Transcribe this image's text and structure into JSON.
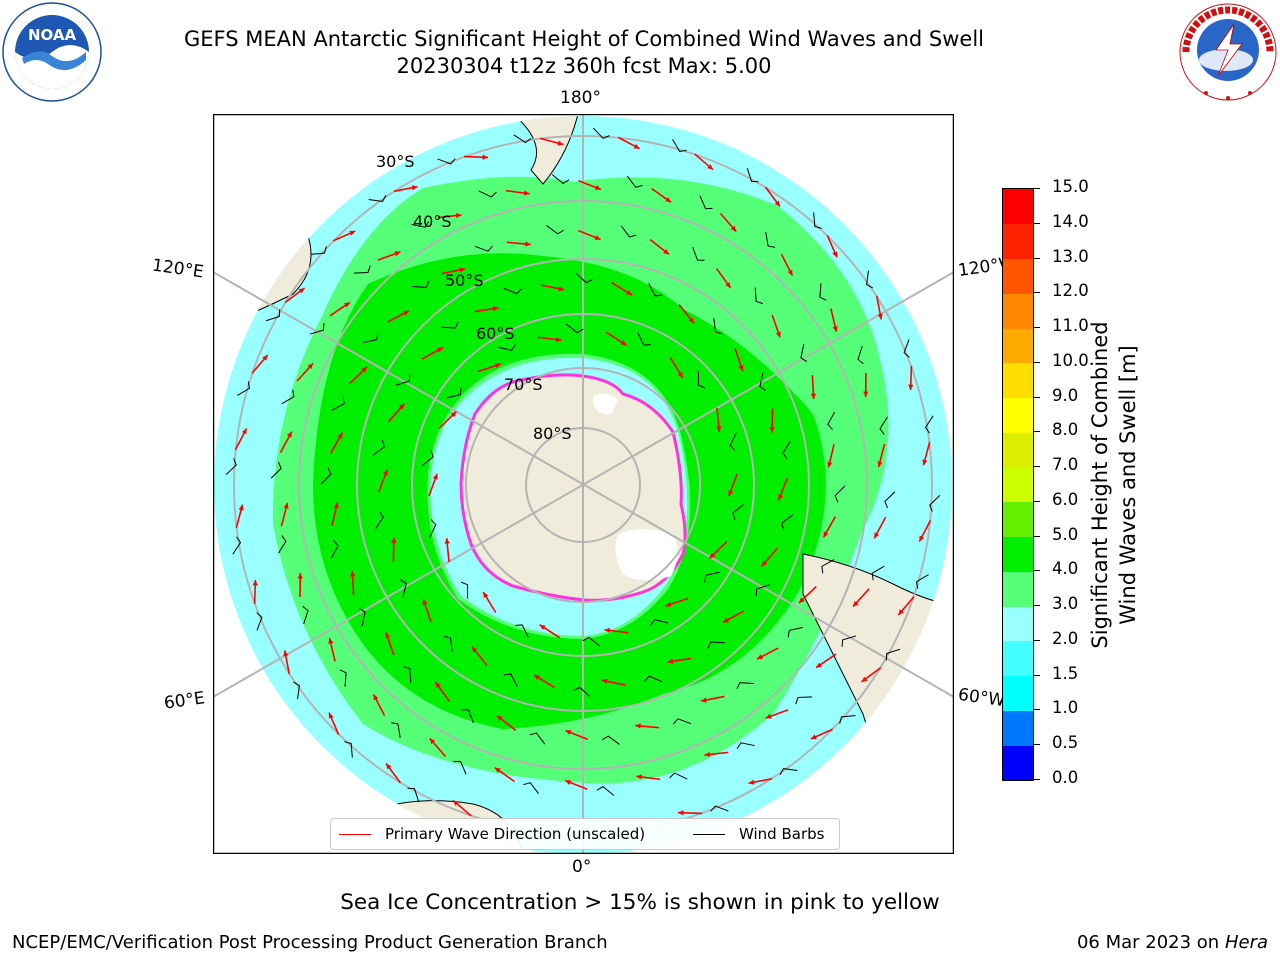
{
  "title": {
    "line1": "GEFS MEAN Antarctic Significant Height of Combined Wind Waves and Swell",
    "line2": "20230304 t12z 360h fcst   Max: 5.00"
  },
  "logos": {
    "noaa": {
      "icon": "noaa-logo",
      "text": "NOAA",
      "ring_text": "NATIONAL OCEANIC AND ATMOSPHERIC ADMINISTRATION · U.S. DEPARTMENT OF COMMERCE"
    },
    "nws": {
      "icon": "nws-logo",
      "ring_text": "NATIONAL WEATHER SERVICE"
    }
  },
  "map": {
    "projection": "south-polar-stereographic",
    "longitude_labels": {
      "top": "180°",
      "bottom": "0°",
      "left_upper": "120°E",
      "left_lower": "60°E",
      "right_upper": "120°W",
      "right_lower": "60°W"
    },
    "latitude_labels": [
      "30°S",
      "40°S",
      "50°S",
      "60°S",
      "70°S",
      "80°S"
    ],
    "colors": {
      "land": "#efecdc",
      "antarctic_ice_shelf": "#ffffff",
      "sea_ice_edge": "#ff33dd",
      "grid": "#b4b4b4",
      "wave_arrow": "#ff0000",
      "wind_barb": "#000000"
    }
  },
  "legend": {
    "wave_direction": "Primary Wave Direction (unscaled)",
    "wind_barbs": "Wind Barbs"
  },
  "colorbar": {
    "title_line1": "Significant Height of Combined",
    "title_line2": "Wind Waves and Swell [m]",
    "ticks": [
      "0.0",
      "0.5",
      "1.0",
      "1.5",
      "2.0",
      "3.0",
      "4.0",
      "5.0",
      "6.0",
      "7.0",
      "8.0",
      "9.0",
      "10.0",
      "11.0",
      "12.0",
      "13.0",
      "14.0",
      "15.0"
    ],
    "colors": [
      "#0000ff",
      "#0077ff",
      "#00ffff",
      "#44ffff",
      "#99ffff",
      "#55ff77",
      "#00ee00",
      "#66ee00",
      "#ccff00",
      "#ddee00",
      "#ffff00",
      "#ffdd00",
      "#ffaa00",
      "#ff8800",
      "#ff5500",
      "#ff2200",
      "#ff0000"
    ]
  },
  "caption": "Sea Ice Concentration > 15% is shown in pink to yellow",
  "footer": {
    "credit": "NCEP/EMC/Verification Post Processing Product Generation Branch",
    "date": "06 Mar 2023 on",
    "host": "Hera"
  }
}
